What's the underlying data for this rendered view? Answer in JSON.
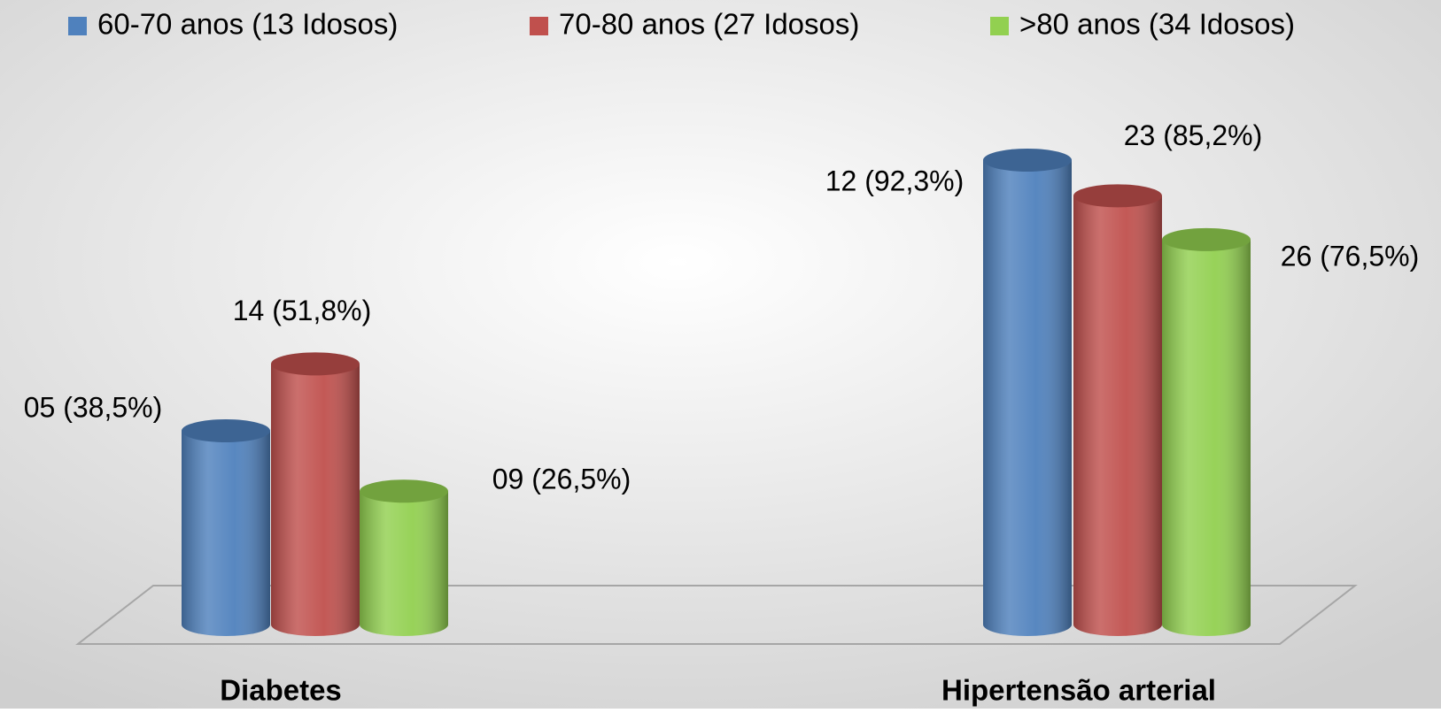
{
  "chart_data": {
    "type": "bar3d-cylinder",
    "categories": [
      "Diabetes",
      "Hipertensão arterial"
    ],
    "series": [
      {
        "name": "60-70 anos (13 Idosos)",
        "color": "#4f81bd",
        "values": [
          38.5,
          92.3
        ],
        "value_labels": [
          "05 (38,5%)",
          "12 (92,3%)"
        ]
      },
      {
        "name": "70-80 anos (27 Idosos)",
        "color": "#c0504d",
        "values": [
          51.8,
          85.2
        ],
        "value_labels": [
          "14 (51,8%)",
          "23 (85,2%)"
        ]
      },
      {
        "name": ">80 anos (34 Idosos)",
        "color": "#92d050",
        "values": [
          26.5,
          76.5
        ],
        "value_labels": [
          "09 (26,5%)",
          "26 (76,5%)"
        ]
      }
    ],
    "legend": "top"
  }
}
